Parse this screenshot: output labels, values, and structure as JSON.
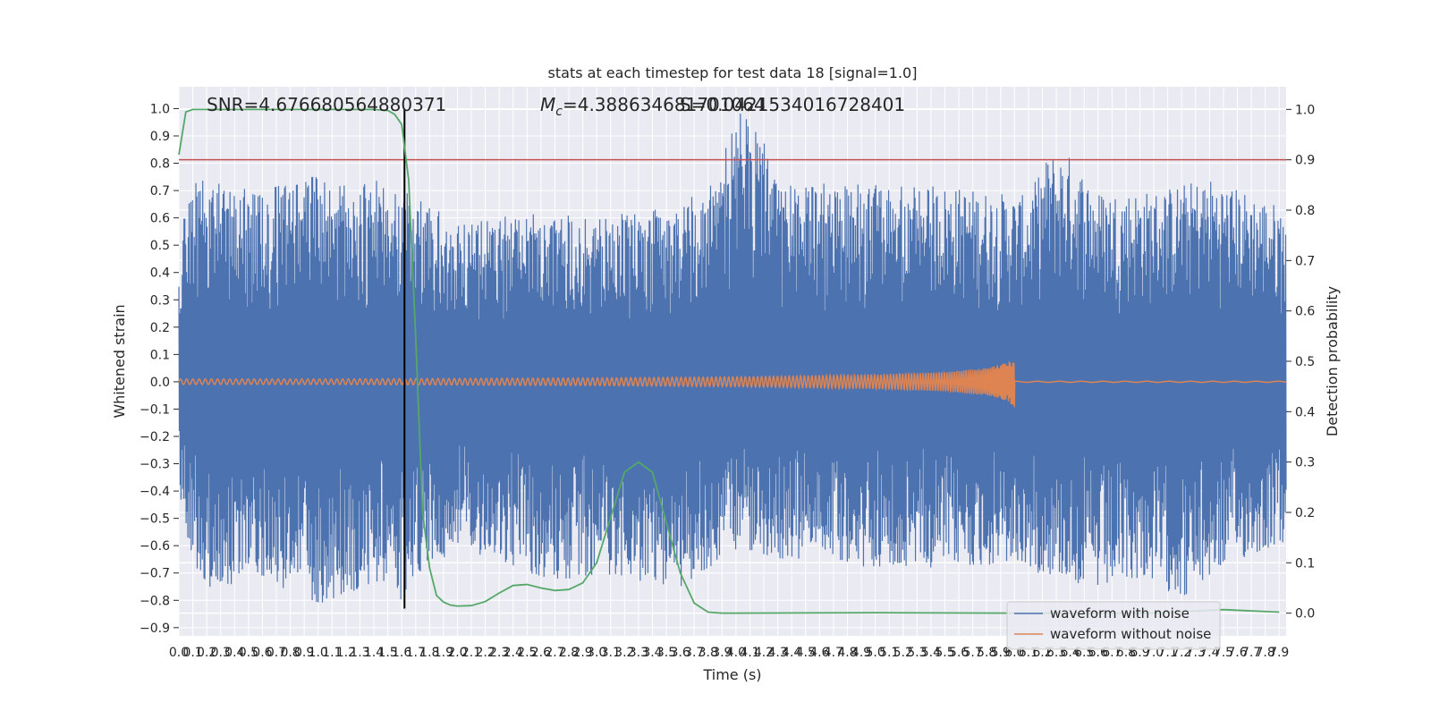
{
  "chart_data": {
    "type": "line",
    "title": "stats at each timestep for test data 18 [signal=1.0]",
    "xlabel": "Time (s)",
    "ylabel": "Whitened strain",
    "y2label": "Detection probability",
    "xlim": [
      0.0,
      7.95
    ],
    "ylim": [
      -0.93,
      1.08
    ],
    "y2lim": [
      -0.045,
      1.045
    ],
    "x_ticks": [
      "0.0",
      "0.1",
      "0.2",
      "0.3",
      "0.4",
      "0.5",
      "0.6",
      "0.7",
      "0.8",
      "0.9",
      "1.0",
      "1.1",
      "1.2",
      "1.3",
      "1.4",
      "1.5",
      "1.6",
      "1.7",
      "1.8",
      "1.9",
      "2.0",
      "2.1",
      "2.2",
      "2.3",
      "2.4",
      "2.5",
      "2.6",
      "2.7",
      "2.8",
      "2.9",
      "3.0",
      "3.1",
      "3.2",
      "3.3",
      "3.4",
      "3.5",
      "3.6",
      "3.7",
      "3.8",
      "3.9",
      "4.0",
      "4.1",
      "4.2",
      "4.3",
      "4.4",
      "4.5",
      "4.6",
      "4.7",
      "4.8",
      "4.9",
      "5.0",
      "5.1",
      "5.2",
      "5.3",
      "5.4",
      "5.5",
      "5.6",
      "5.7",
      "5.8",
      "5.9",
      "6.0",
      "6.1",
      "6.2",
      "6.3",
      "6.4",
      "6.5",
      "6.6",
      "6.7",
      "6.8",
      "6.9",
      "7.0",
      "7.1",
      "7.2",
      "7.3",
      "7.4",
      "7.5",
      "7.6",
      "7.7",
      "7.8",
      "7.9"
    ],
    "y_ticks": [
      "1.0",
      "0.9",
      "0.8",
      "0.7",
      "0.6",
      "0.5",
      "0.4",
      "0.3",
      "0.2",
      "0.1",
      "0.0",
      "−0.1",
      "−0.2",
      "−0.3",
      "−0.4",
      "−0.5",
      "−0.6",
      "−0.7",
      "−0.8",
      "−0.9"
    ],
    "y2_ticks": [
      "1.0",
      "0.9",
      "0.8",
      "0.7",
      "0.6",
      "0.5",
      "0.4",
      "0.3",
      "0.2",
      "0.1",
      "0.0"
    ],
    "annotations": {
      "snr": "SNR=4.676680564880371",
      "mc_label": "M",
      "mc_sub": "c",
      "mc_value": "=4.388634681701064",
      "s_value": "S=0.0421534016728401"
    },
    "grid": true,
    "legend_position": "lower-right",
    "series": [
      {
        "name": "waveform with noise",
        "color": "#4c72b0",
        "envelope_upper": [
          [
            0.0,
            0.55
          ],
          [
            0.13,
            0.75
          ],
          [
            0.28,
            0.73
          ],
          [
            0.6,
            0.7
          ],
          [
            0.95,
            0.75
          ],
          [
            1.6,
            0.73
          ],
          [
            2.0,
            0.57
          ],
          [
            2.5,
            0.62
          ],
          [
            3.0,
            0.6
          ],
          [
            3.5,
            0.64
          ],
          [
            3.8,
            0.7
          ],
          [
            4.08,
            1.08
          ],
          [
            4.3,
            0.73
          ],
          [
            5.0,
            0.72
          ],
          [
            5.5,
            0.72
          ],
          [
            6.1,
            0.68
          ],
          [
            6.25,
            0.84
          ],
          [
            6.4,
            0.83
          ],
          [
            6.6,
            0.7
          ],
          [
            7.0,
            0.7
          ],
          [
            7.4,
            0.75
          ],
          [
            7.9,
            0.65
          ]
        ],
        "envelope_lower": [
          [
            0.0,
            -0.42
          ],
          [
            0.1,
            -0.66
          ],
          [
            0.25,
            -0.77
          ],
          [
            0.55,
            -0.7
          ],
          [
            0.97,
            -0.83
          ],
          [
            1.45,
            -0.73
          ],
          [
            1.6,
            -0.83
          ],
          [
            1.73,
            -0.72
          ],
          [
            2.0,
            -0.6
          ],
          [
            2.6,
            -0.72
          ],
          [
            3.2,
            -0.72
          ],
          [
            3.6,
            -0.75
          ],
          [
            4.0,
            -0.63
          ],
          [
            5.0,
            -0.68
          ],
          [
            6.0,
            -0.68
          ],
          [
            6.35,
            -0.72
          ],
          [
            6.6,
            -0.78
          ],
          [
            6.9,
            -0.72
          ],
          [
            7.25,
            -0.8
          ],
          [
            7.5,
            -0.68
          ],
          [
            7.9,
            -0.6
          ]
        ]
      },
      {
        "name": "waveform without noise",
        "color": "#dd8452",
        "amplitude": [
          [
            0.0,
            0.01
          ],
          [
            1.0,
            0.01
          ],
          [
            2.0,
            0.012
          ],
          [
            3.0,
            0.014
          ],
          [
            4.0,
            0.018
          ],
          [
            5.0,
            0.026
          ],
          [
            5.5,
            0.035
          ],
          [
            5.8,
            0.05
          ],
          [
            5.95,
            0.07
          ],
          [
            6.0,
            0.095
          ]
        ],
        "merger_time": 6.0
      },
      {
        "name": "detection probability",
        "axis": "right",
        "color": "#55a868",
        "x": [
          0.0,
          0.05,
          0.1,
          0.2,
          0.4,
          0.8,
          1.2,
          1.4,
          1.5,
          1.55,
          1.6,
          1.65,
          1.7,
          1.75,
          1.8,
          1.85,
          1.9,
          1.95,
          2.0,
          2.1,
          2.2,
          2.3,
          2.4,
          2.5,
          2.6,
          2.7,
          2.8,
          2.9,
          3.0,
          3.1,
          3.2,
          3.3,
          3.4,
          3.5,
          3.6,
          3.7,
          3.8,
          3.9,
          4.0,
          5.0,
          6.0,
          7.0,
          7.5,
          7.9
        ],
        "values": [
          0.91,
          0.995,
          1.0,
          1.0,
          1.0,
          1.0,
          1.0,
          1.0,
          0.998,
          0.99,
          0.97,
          0.86,
          0.55,
          0.2,
          0.09,
          0.035,
          0.022,
          0.016,
          0.014,
          0.015,
          0.023,
          0.04,
          0.055,
          0.057,
          0.05,
          0.045,
          0.047,
          0.06,
          0.1,
          0.19,
          0.28,
          0.3,
          0.28,
          0.18,
          0.08,
          0.02,
          0.002,
          0.0,
          0.0,
          0.001,
          0.0,
          0.0,
          0.007,
          0.002
        ]
      },
      {
        "name": "threshold",
        "axis": "right",
        "color": "#c44e52",
        "value": 0.9
      },
      {
        "name": "detection time",
        "color": "#000000",
        "x": 1.62
      }
    ]
  }
}
